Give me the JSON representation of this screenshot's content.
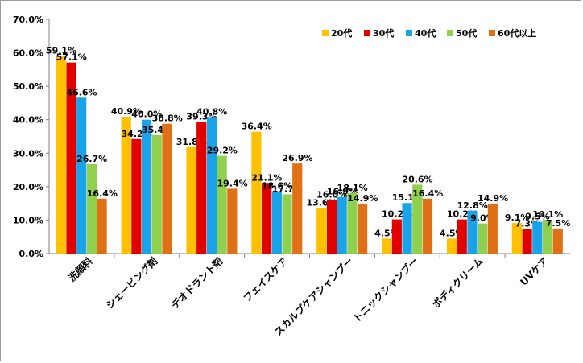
{
  "chart_data": {
    "type": "bar",
    "categories": [
      "洗顔料",
      "シェービング剤",
      "デオドラント剤",
      "フェイスケア",
      "スカルプケアシャンプー",
      "トニックシャンプー",
      "ボディクリーム",
      "UVケア"
    ],
    "series": [
      {
        "name": "20代",
        "color": "#FFC000",
        "values": [
          59.1,
          40.9,
          31.8,
          36.4,
          13.6,
          4.5,
          4.5,
          9.1
        ]
      },
      {
        "name": "30代",
        "color": "#E00000",
        "values": [
          57.1,
          34.2,
          39.3,
          21.1,
          16.0,
          10.2,
          10.2,
          7.3
        ]
      },
      {
        "name": "40代",
        "color": "#1AA3E8",
        "values": [
          46.6,
          40.0,
          40.8,
          18.6,
          16.9,
          15.1,
          12.8,
          9.5
        ]
      },
      {
        "name": "50代",
        "color": "#8FD14F",
        "values": [
          26.7,
          35.4,
          29.2,
          17.7,
          18.1,
          20.6,
          9.0,
          10.1
        ]
      },
      {
        "name": "60代以上",
        "color": "#E07015",
        "values": [
          16.4,
          38.8,
          19.4,
          26.9,
          14.9,
          16.4,
          14.9,
          7.5
        ]
      }
    ],
    "ylim": [
      0,
      70
    ],
    "yticks": [
      "0.0%",
      "10.0%",
      "20.0%",
      "30.0%",
      "40.0%",
      "50.0%",
      "60.0%",
      "70.0%"
    ],
    "value_suffix": "%",
    "grid": false,
    "legend_position": "top-right"
  }
}
